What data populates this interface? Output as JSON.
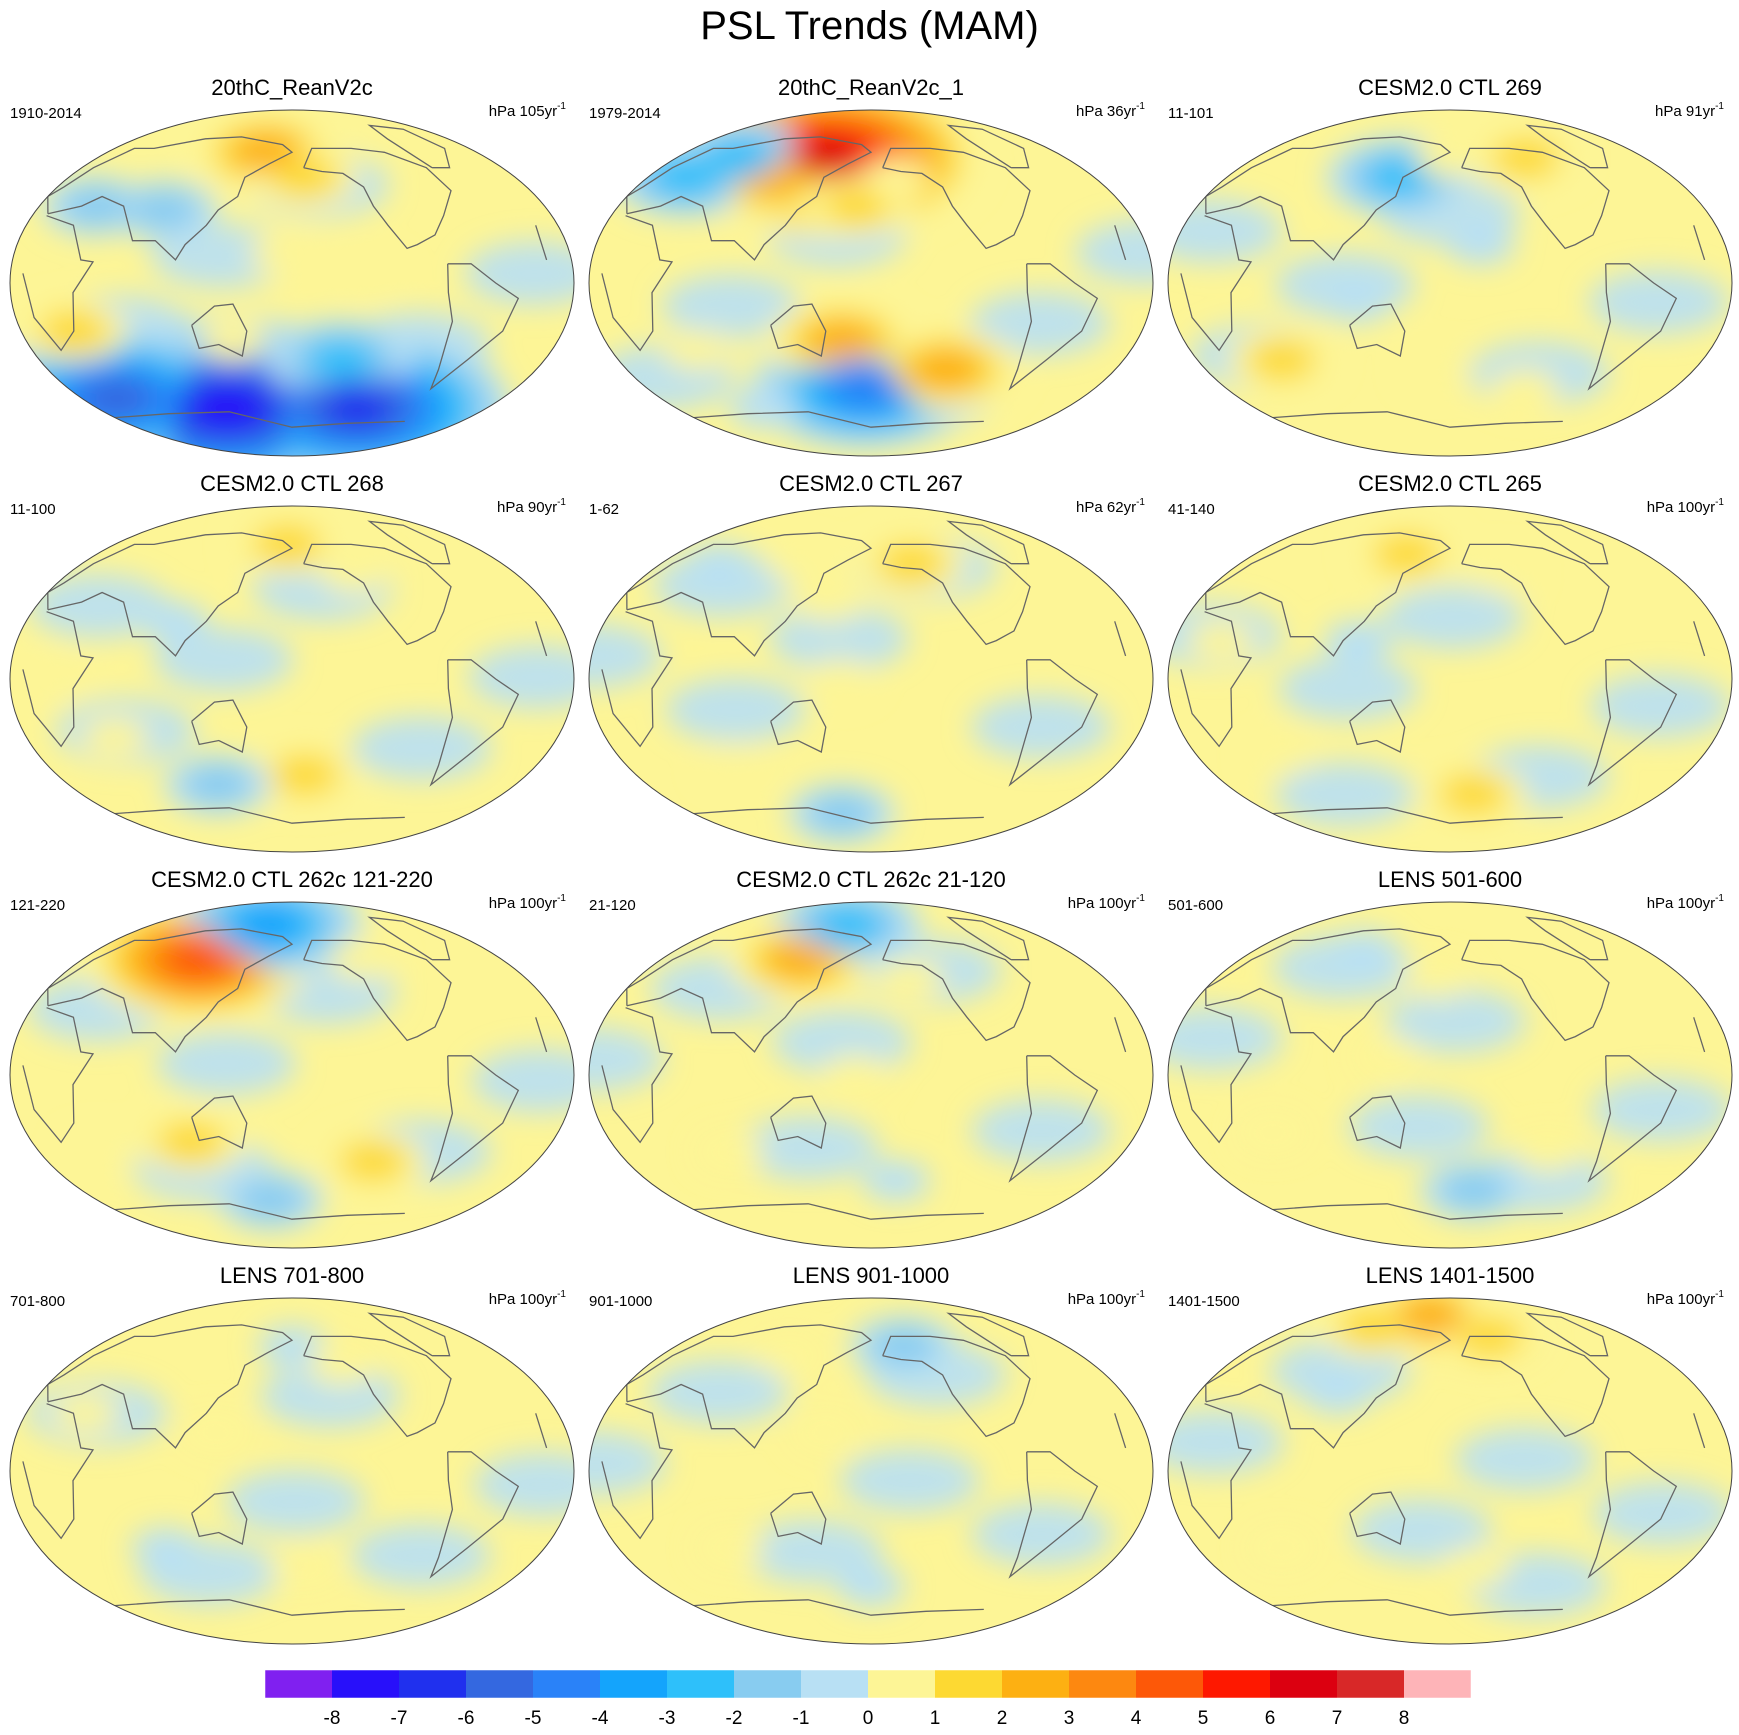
{
  "chart_data": {
    "type": "heatmap",
    "title": "PSL Trends (MAM)",
    "projection": "Winkel tripel (global)",
    "panels": [
      {
        "title": "20thC_ReanV2c",
        "period": "1910-2014",
        "unit": "hPa 105yr",
        "unit_sup": "-1",
        "features": [
          {
            "lon": 155,
            "lat": 68,
            "value": 3
          },
          {
            "lon": 190,
            "lat": 55,
            "value": 2
          },
          {
            "lon": 40,
            "lat": 40,
            "value": -2
          },
          {
            "lon": 90,
            "lat": 38,
            "value": -2
          },
          {
            "lon": 175,
            "lat": 15,
            "value": 1
          },
          {
            "lon": 230,
            "lat": 5,
            "value": 1
          },
          {
            "lon": 35,
            "lat": -25,
            "value": 2
          },
          {
            "lon": 140,
            "lat": -30,
            "value": 1
          },
          {
            "lon": 215,
            "lat": -40,
            "value": -3
          },
          {
            "lon": 120,
            "lat": -65,
            "value": -8
          },
          {
            "lon": 240,
            "lat": -65,
            "value": -7
          },
          {
            "lon": 30,
            "lat": -60,
            "value": -6
          }
        ]
      },
      {
        "title": "20thC_ReanV2c_1",
        "period": "1979-2014",
        "unit": "hPa 36yr",
        "unit_sup": "-1",
        "features": [
          {
            "lon": 140,
            "lat": 65,
            "value": 7
          },
          {
            "lon": 100,
            "lat": 55,
            "value": 3
          },
          {
            "lon": 60,
            "lat": 65,
            "value": -3
          },
          {
            "lon": 30,
            "lat": 55,
            "value": -3
          },
          {
            "lon": 170,
            "lat": 40,
            "value": 2
          },
          {
            "lon": 200,
            "lat": 55,
            "value": 1
          },
          {
            "lon": 160,
            "lat": -30,
            "value": 3
          },
          {
            "lon": 175,
            "lat": -55,
            "value": -5
          },
          {
            "lon": 235,
            "lat": -45,
            "value": 3
          },
          {
            "lon": 60,
            "lat": -35,
            "value": 1
          },
          {
            "lon": 80,
            "lat": -65,
            "value": -1
          }
        ]
      },
      {
        "title": "CESM2.0 CTL 269",
        "period": "11-101",
        "unit": "hPa 91yr",
        "unit_sup": "-1",
        "features": [
          {
            "lon": 140,
            "lat": 55,
            "value": -3
          },
          {
            "lon": 250,
            "lat": 65,
            "value": 2
          },
          {
            "lon": 180,
            "lat": 65,
            "value": 1
          },
          {
            "lon": 200,
            "lat": 20,
            "value": -1
          },
          {
            "lon": 60,
            "lat": -40,
            "value": 2
          },
          {
            "lon": 170,
            "lat": -45,
            "value": 1
          },
          {
            "lon": 240,
            "lat": -55,
            "value": 1
          },
          {
            "lon": 120,
            "lat": -10,
            "value": -1
          }
        ]
      },
      {
        "title": "CESM2.0 CTL 268",
        "period": "11-100",
        "unit": "hPa 90yr",
        "unit_sup": "-1",
        "features": [
          {
            "lon": 175,
            "lat": 70,
            "value": 2
          },
          {
            "lon": 230,
            "lat": 55,
            "value": 1
          },
          {
            "lon": 100,
            "lat": 30,
            "value": -1
          },
          {
            "lon": 190,
            "lat": -50,
            "value": 2
          },
          {
            "lon": 120,
            "lat": -55,
            "value": -2
          },
          {
            "lon": 60,
            "lat": -30,
            "value": 1
          },
          {
            "lon": 30,
            "lat": 0,
            "value": 1
          }
        ]
      },
      {
        "title": "CESM2.0 CTL 267",
        "period": "1-62",
        "unit": "hPa 62yr",
        "unit_sup": "-1",
        "features": [
          {
            "lon": 215,
            "lat": 60,
            "value": 2
          },
          {
            "lon": 120,
            "lat": 60,
            "value": 1
          },
          {
            "lon": 150,
            "lat": 40,
            "value": 1
          },
          {
            "lon": 50,
            "lat": 60,
            "value": -1
          },
          {
            "lon": 150,
            "lat": -70,
            "value": -2
          },
          {
            "lon": 80,
            "lat": -45,
            "value": 1
          },
          {
            "lon": 160,
            "lat": 0,
            "value": 1
          }
        ]
      },
      {
        "title": "CESM2.0 CTL 265",
        "period": "41-140",
        "unit": "hPa 100yr",
        "unit_sup": "-1",
        "features": [
          {
            "lon": 140,
            "lat": 65,
            "value": 2
          },
          {
            "lon": 220,
            "lat": 55,
            "value": 1
          },
          {
            "lon": 200,
            "lat": -60,
            "value": 2
          },
          {
            "lon": 60,
            "lat": -40,
            "value": 1
          },
          {
            "lon": 120,
            "lat": 20,
            "value": -1
          },
          {
            "lon": 30,
            "lat": 20,
            "value": 1
          }
        ]
      },
      {
        "title": "CESM2.0 CTL 262c 121-220",
        "period": "121-220",
        "unit": "hPa 100yr",
        "unit_sup": "-1",
        "features": [
          {
            "lon": 100,
            "lat": 60,
            "value": 5
          },
          {
            "lon": 150,
            "lat": 78,
            "value": -4
          },
          {
            "lon": 240,
            "lat": 60,
            "value": 1
          },
          {
            "lon": 110,
            "lat": -35,
            "value": 2
          },
          {
            "lon": 240,
            "lat": -45,
            "value": 2
          },
          {
            "lon": 160,
            "lat": -65,
            "value": -2
          },
          {
            "lon": 40,
            "lat": -40,
            "value": 1
          }
        ]
      },
      {
        "title": "CESM2.0 CTL 262c 21-120",
        "period": "21-120",
        "unit": "hPa 100yr",
        "unit_sup": "-1",
        "features": [
          {
            "lon": 120,
            "lat": 60,
            "value": 3
          },
          {
            "lon": 150,
            "lat": 78,
            "value": -3
          },
          {
            "lon": 210,
            "lat": 50,
            "value": 1
          },
          {
            "lon": 170,
            "lat": 0,
            "value": 1
          },
          {
            "lon": 200,
            "lat": -55,
            "value": -1
          },
          {
            "lon": 80,
            "lat": -40,
            "value": 1
          }
        ]
      },
      {
        "title": "LENS 501-600",
        "period": "501-600",
        "unit": "hPa 100yr",
        "unit_sup": "-1",
        "features": [
          {
            "lon": 100,
            "lat": 65,
            "value": -1
          },
          {
            "lon": 170,
            "lat": 50,
            "value": 1
          },
          {
            "lon": 200,
            "lat": -60,
            "value": -2
          },
          {
            "lon": 60,
            "lat": -30,
            "value": 1
          },
          {
            "lon": 250,
            "lat": -40,
            "value": 1
          },
          {
            "lon": 140,
            "lat": 10,
            "value": 1
          }
        ]
      },
      {
        "title": "LENS 701-800",
        "period": "701-800",
        "unit": "hPa 100yr",
        "unit_sup": "-1",
        "features": [
          {
            "lon": 180,
            "lat": 65,
            "value": -1
          },
          {
            "lon": 220,
            "lat": 55,
            "value": 1
          },
          {
            "lon": 90,
            "lat": -40,
            "value": -1
          },
          {
            "lon": 190,
            "lat": -50,
            "value": 1
          },
          {
            "lon": 130,
            "lat": 20,
            "value": 1
          },
          {
            "lon": 40,
            "lat": 30,
            "value": 1
          }
        ]
      },
      {
        "title": "LENS 901-1000",
        "period": "901-1000",
        "unit": "hPa 100yr",
        "unit_sup": "-1",
        "features": [
          {
            "lon": 210,
            "lat": 65,
            "value": -2
          },
          {
            "lon": 110,
            "lat": 60,
            "value": 1
          },
          {
            "lon": 180,
            "lat": -60,
            "value": -1
          },
          {
            "lon": 80,
            "lat": -40,
            "value": 1
          },
          {
            "lon": 150,
            "lat": 20,
            "value": 1
          }
        ]
      },
      {
        "title": "LENS 1401-1500",
        "period": "1401-1500",
        "unit": "hPa 100yr",
        "unit_sup": "-1",
        "features": [
          {
            "lon": 150,
            "lat": 80,
            "value": 3
          },
          {
            "lon": 220,
            "lat": 70,
            "value": 2
          },
          {
            "lon": 90,
            "lat": 75,
            "value": 2
          },
          {
            "lon": 100,
            "lat": 40,
            "value": -1
          },
          {
            "lon": 200,
            "lat": -50,
            "value": 1
          },
          {
            "lon": 60,
            "lat": -40,
            "value": 1
          }
        ]
      }
    ],
    "colorbar": {
      "labels": [
        "-8",
        "-7",
        "-6",
        "-5",
        "-4",
        "-3",
        "-2",
        "-1",
        "0",
        "1",
        "2",
        "3",
        "4",
        "5",
        "6",
        "7",
        "8"
      ],
      "levels": [
        -8,
        -7,
        -6,
        -5,
        -4,
        -3,
        -2,
        -1,
        0,
        1,
        2,
        3,
        4,
        5,
        6,
        7,
        8
      ],
      "colors": [
        "#8020f0",
        "#2810fa",
        "#2030ee",
        "#3468e0",
        "#2a82f8",
        "#14a4fc",
        "#2ec0fa",
        "#88ccf0",
        "#b8e0f4",
        "#fdf596",
        "#fdd932",
        "#fdb012",
        "#fd8810",
        "#fd5808",
        "#fe1800",
        "#dc0010",
        "#d82828",
        "#feb4b8"
      ]
    }
  }
}
